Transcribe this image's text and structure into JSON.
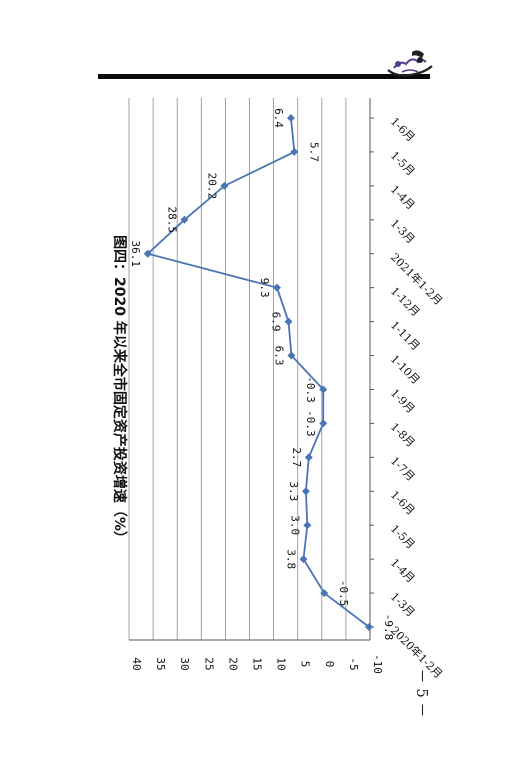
{
  "page": {
    "number": "－ 5 －"
  },
  "colors": {
    "series": "#4a75b5",
    "grid": "#8c8c8c",
    "axis": "#555555",
    "text": "#111111"
  },
  "logo": {
    "icon": "dragon-boat-logo-icon"
  },
  "chart_data": {
    "type": "line",
    "title": "图四：2020 年以来全市固定资产投资增速（%）",
    "xlabel": "",
    "ylabel": "",
    "orientation": "rotated-90-clockwise",
    "categories": [
      "2020年1-2月",
      "1-3月",
      "1-4月",
      "1-5月",
      "1-6月",
      "1-7月",
      "1-8月",
      "1-9月",
      "1-10月",
      "1-11月",
      "1-12月",
      "2021年1-2月",
      "1-3月",
      "1-4月",
      "1-5月",
      "1-6月"
    ],
    "tick_labels": [
      "2020年1-2月",
      "1-3月",
      "1-4月",
      "1-5月",
      "1-6月",
      "1-7月",
      "1-8月",
      "1-9月",
      "1-10月",
      "1-11月",
      "1-12月",
      "2021年1-2月",
      "1-3月",
      "1-4月",
      "1-5月",
      "1-6月"
    ],
    "series": [
      {
        "values": [
          -9.8,
          -0.5,
          3.8,
          3.0,
          3.3,
          2.7,
          -0.3,
          -0.3,
          6.3,
          6.9,
          9.3,
          36.1,
          28.5,
          20.2,
          5.7,
          6.4
        ],
        "data_labels": [
          "-9.8",
          "-0.5",
          "3.8",
          "3.0",
          "3.3",
          "2.7",
          "-0.3",
          "-0.3",
          "6.3",
          "6.9",
          "9.3",
          "36.1",
          "28.5",
          "20.2",
          "5.7",
          "6.4"
        ]
      }
    ],
    "yticks": [
      -10,
      -5,
      0,
      5,
      10,
      15,
      20,
      25,
      30,
      35,
      40
    ],
    "ytick_labels": [
      "-10",
      "-5",
      "0",
      "5",
      "10",
      "15",
      "20",
      "25",
      "30",
      "35",
      "40"
    ],
    "ylim": [
      -10,
      40
    ],
    "grid": true,
    "legend": "none"
  }
}
